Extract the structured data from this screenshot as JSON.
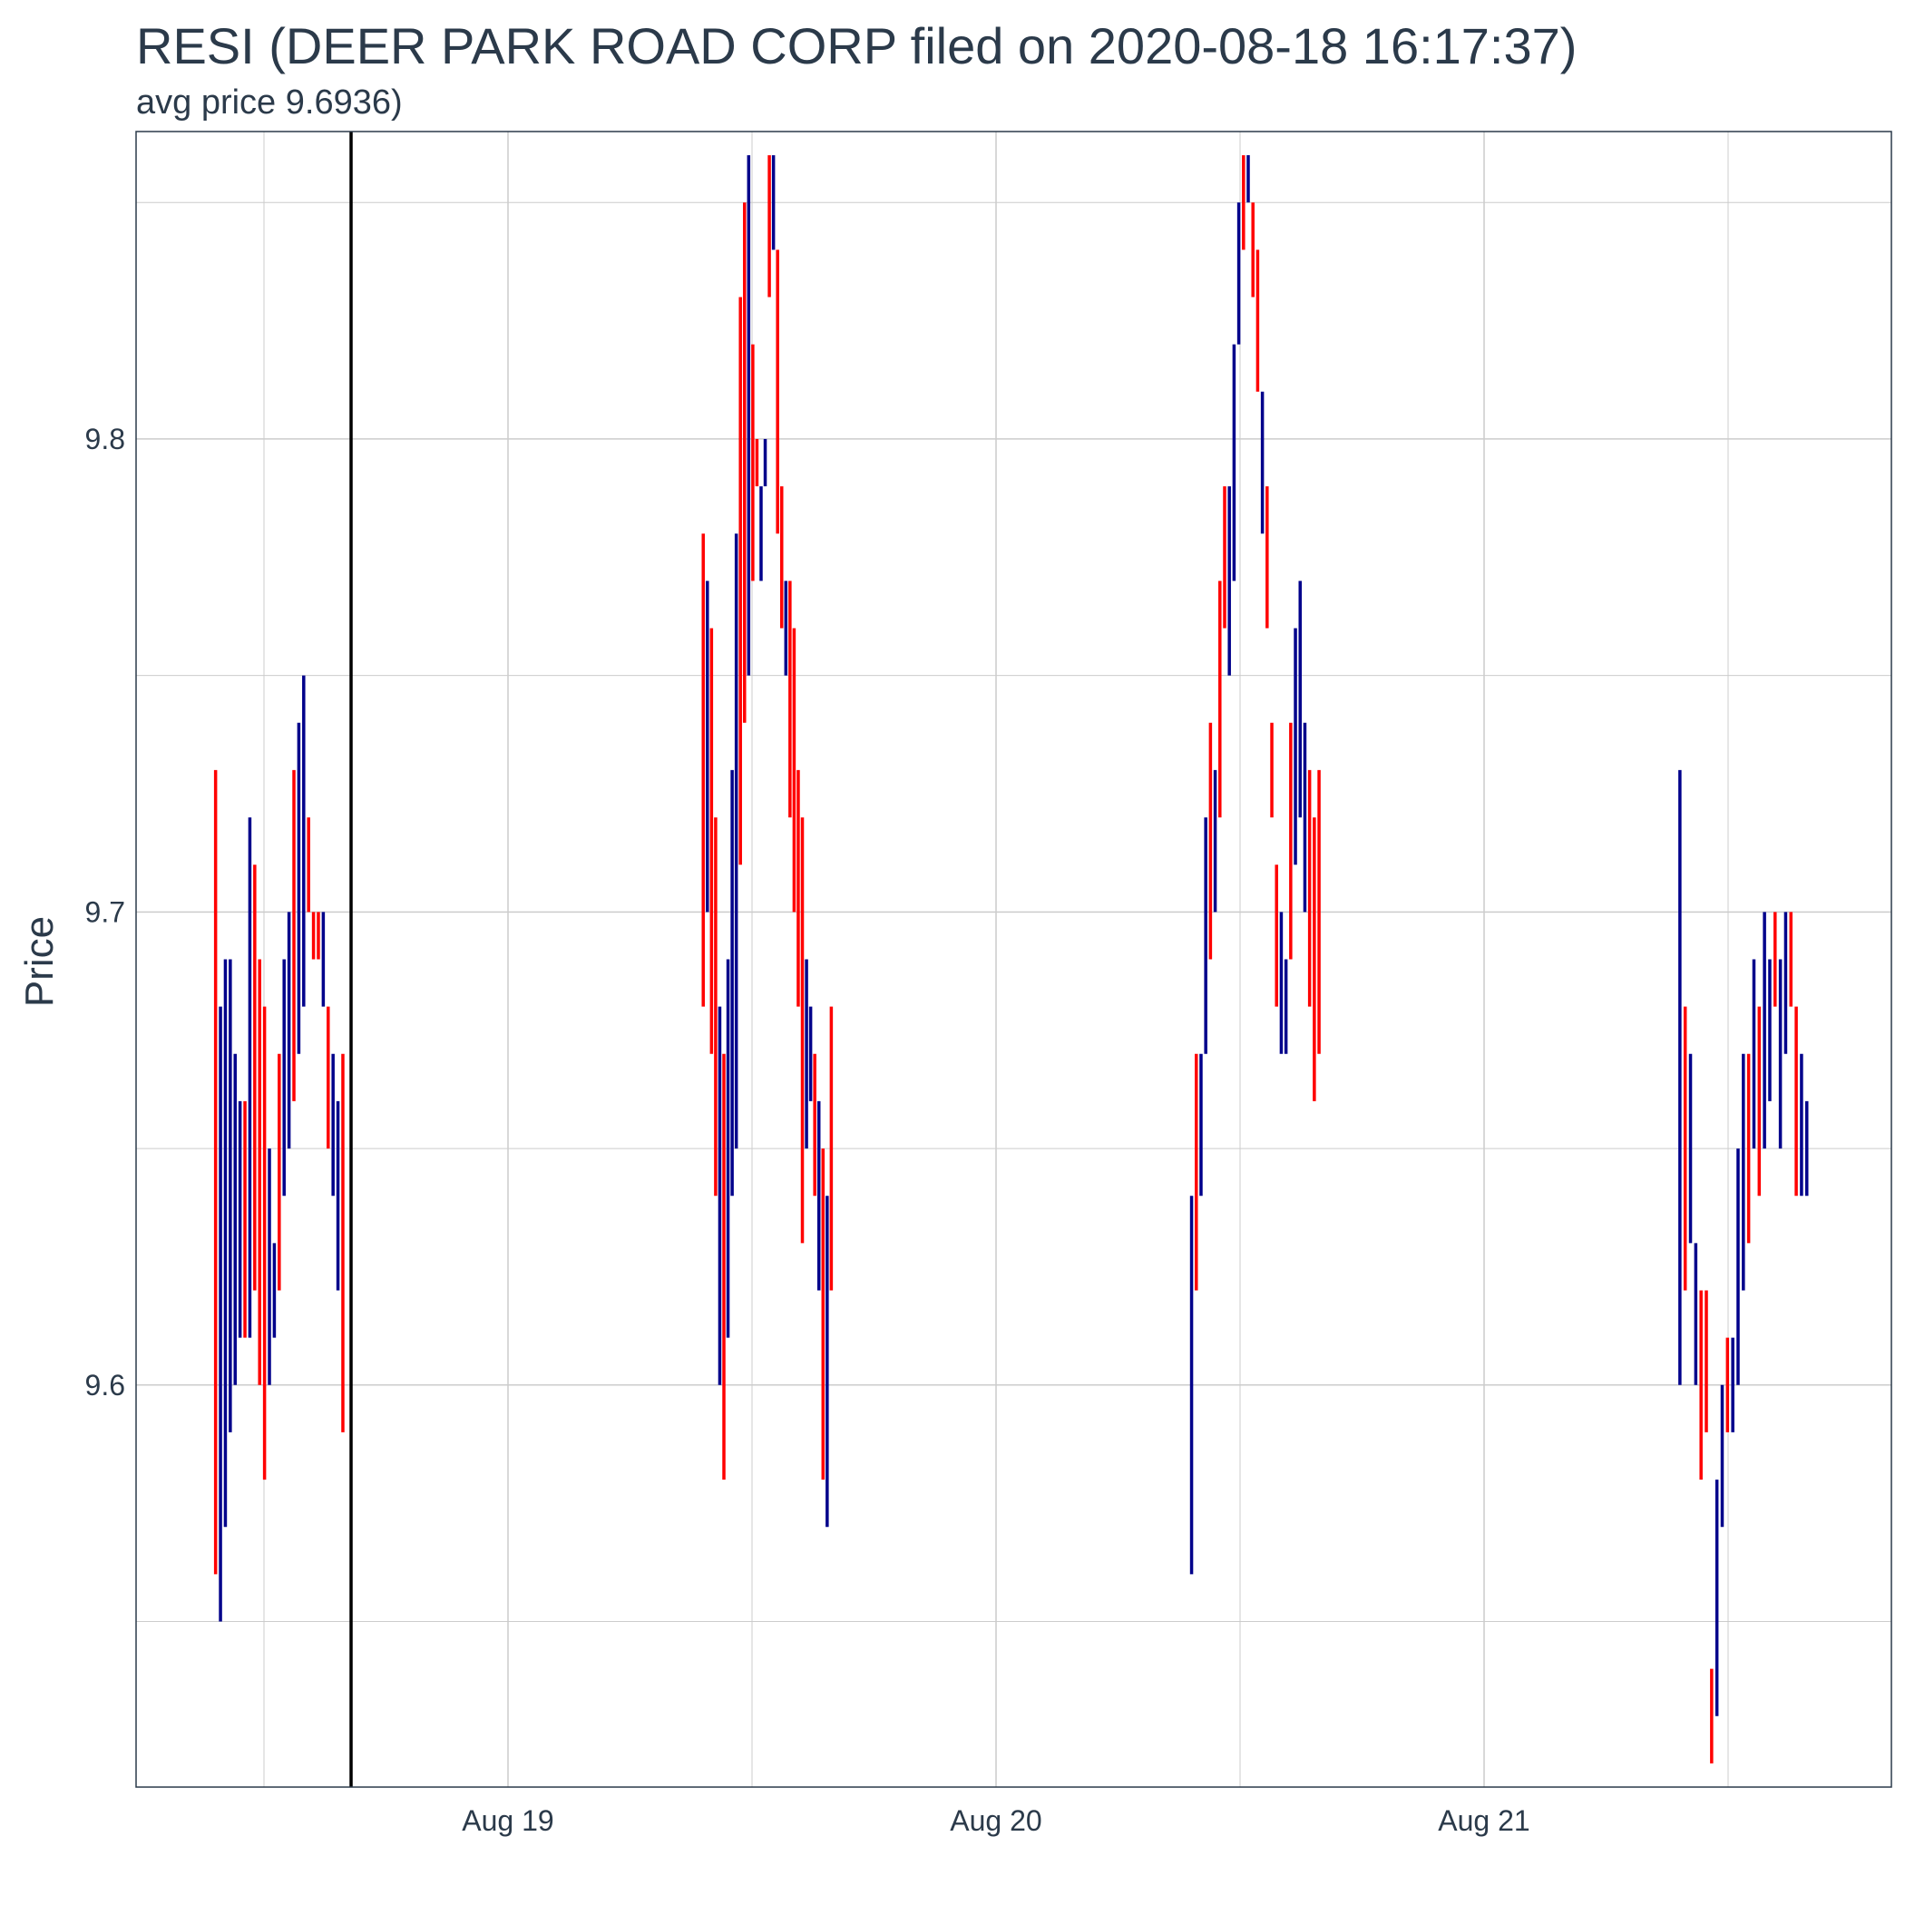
{
  "chart_data": {
    "type": "ohlc",
    "title": "RESI (DEER PARK ROAD CORP filed on 2020-08-18 16:17:37)",
    "subtitle": "avg price 9.6936)",
    "xlabel": "",
    "ylabel": "Price",
    "x_ticks": [
      "Aug 19",
      "Aug 20",
      "Aug 21"
    ],
    "y_ticks": [
      "9.6",
      "9.7",
      "9.8"
    ],
    "ylim": [
      9.515,
      9.865
    ],
    "grid": true,
    "vline_label": "2020-08-18 16:17:37",
    "colors": {
      "up": "#00008b",
      "down": "#ff0000",
      "vline": "#000000",
      "grid": "#cccccc",
      "text": "#2b3a4a"
    },
    "sessions": [
      {
        "date": "2020-08-18",
        "lows": [
          9.56,
          9.55,
          9.57,
          9.59,
          9.6,
          9.61,
          9.61,
          9.61,
          9.62,
          9.6,
          9.58,
          9.6,
          9.61,
          9.62,
          9.64,
          9.65,
          9.66,
          9.67,
          9.68,
          9.7,
          9.69,
          9.69,
          9.68,
          9.65,
          9.64,
          9.62,
          9.59
        ],
        "highs": [
          9.73,
          9.68,
          9.69,
          9.69,
          9.67,
          9.66,
          9.66,
          9.72,
          9.71,
          9.69,
          9.68,
          9.65,
          9.63,
          9.67,
          9.69,
          9.7,
          9.73,
          9.74,
          9.75,
          9.72,
          9.7,
          9.7,
          9.7,
          9.68,
          9.67,
          9.66,
          9.67
        ],
        "up": [
          false,
          true,
          true,
          true,
          true,
          true,
          false,
          true,
          false,
          false,
          false,
          true,
          true,
          false,
          true,
          true,
          false,
          true,
          true,
          false,
          false,
          false,
          true,
          false,
          true,
          true,
          false
        ]
      },
      {
        "date": "2020-08-19",
        "lows": [
          9.68,
          9.7,
          9.67,
          9.64,
          9.6,
          9.58,
          9.61,
          9.64,
          9.65,
          9.71,
          9.74,
          9.75,
          9.77,
          9.79,
          9.77,
          9.8,
          9.83,
          9.84,
          9.78,
          9.76,
          9.75,
          9.72,
          9.7,
          9.68,
          9.63,
          9.65,
          9.66,
          9.64,
          9.62,
          9.58,
          9.57,
          9.62
        ],
        "highs": [
          9.78,
          9.77,
          9.76,
          9.72,
          9.68,
          9.67,
          9.69,
          9.73,
          9.78,
          9.83,
          9.85,
          9.86,
          9.82,
          9.8,
          9.79,
          9.79,
          9.86,
          9.86,
          9.84,
          9.79,
          9.77,
          9.77,
          9.76,
          9.73,
          9.72,
          9.69,
          9.68,
          9.67,
          9.66,
          9.65,
          9.64,
          9.68
        ],
        "up": [
          false,
          true,
          false,
          false,
          true,
          false,
          true,
          true,
          true,
          false,
          false,
          true,
          false,
          false,
          true,
          true,
          false,
          true,
          false,
          false,
          true,
          false,
          false,
          false,
          false,
          true,
          true,
          false,
          true,
          false,
          true,
          false
        ]
      },
      {
        "date": "2020-08-20",
        "lows": [
          9.56,
          9.62,
          9.64,
          9.67,
          9.69,
          9.7,
          9.72,
          9.76,
          9.75,
          9.77,
          9.82,
          9.84,
          9.85,
          9.83,
          9.81,
          9.78,
          9.76,
          9.72,
          9.68,
          9.67,
          9.67,
          9.69,
          9.71,
          9.72,
          9.7,
          9.68,
          9.66,
          9.67
        ],
        "highs": [
          9.64,
          9.67,
          9.67,
          9.72,
          9.74,
          9.73,
          9.77,
          9.79,
          9.79,
          9.82,
          9.85,
          9.86,
          9.86,
          9.85,
          9.84,
          9.81,
          9.79,
          9.74,
          9.71,
          9.7,
          9.69,
          9.74,
          9.76,
          9.77,
          9.74,
          9.73,
          9.72,
          9.73
        ],
        "up": [
          true,
          false,
          true,
          true,
          false,
          true,
          false,
          false,
          true,
          true,
          true,
          false,
          true,
          false,
          false,
          true,
          false,
          false,
          false,
          true,
          true,
          false,
          true,
          true,
          true,
          false,
          false,
          false
        ]
      },
      {
        "date": "2020-08-21",
        "lows": [
          9.6,
          9.62,
          9.63,
          9.6,
          9.58,
          9.59,
          9.52,
          9.53,
          9.57,
          9.59,
          9.59,
          9.6,
          9.62,
          9.63,
          9.65,
          9.64,
          9.65,
          9.66,
          9.68,
          9.65,
          9.67,
          9.68,
          9.64,
          9.64,
          9.64
        ],
        "highs": [
          9.73,
          9.68,
          9.67,
          9.63,
          9.62,
          9.62,
          9.54,
          9.58,
          9.6,
          9.61,
          9.61,
          9.65,
          9.67,
          9.67,
          9.69,
          9.68,
          9.7,
          9.69,
          9.7,
          9.69,
          9.7,
          9.7,
          9.68,
          9.67,
          9.66
        ],
        "up": [
          true,
          false,
          true,
          true,
          false,
          false,
          false,
          true,
          true,
          false,
          true,
          true,
          true,
          false,
          true,
          false,
          true,
          true,
          false,
          true,
          true,
          false,
          false,
          true,
          true
        ]
      }
    ]
  }
}
